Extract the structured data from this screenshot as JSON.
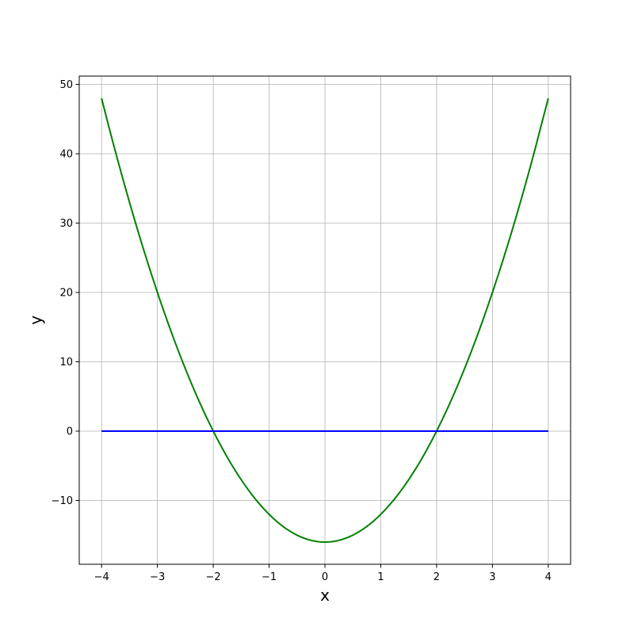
{
  "chart_data": {
    "type": "line",
    "title": "",
    "xlabel": "x",
    "ylabel": "y",
    "xlim": [
      -4.4,
      4.4
    ],
    "ylim": [
      -19.2,
      51.2
    ],
    "grid": true,
    "xticks": [
      -4,
      -3,
      -2,
      -1,
      0,
      1,
      2,
      3,
      4
    ],
    "xtick_labels": [
      "−4",
      "−3",
      "−2",
      "−1",
      "0",
      "1",
      "2",
      "3",
      "4"
    ],
    "yticks": [
      -10,
      0,
      10,
      20,
      30,
      40,
      50
    ],
    "ytick_labels": [
      "−10",
      "0",
      "10",
      "20",
      "30",
      "40",
      "50"
    ],
    "series": [
      {
        "color": "#008000",
        "x": [
          -4,
          -3.75,
          -3.5,
          -3.25,
          -3,
          -2.75,
          -2.5,
          -2.25,
          -2,
          -1.75,
          -1.5,
          -1.25,
          -1,
          -0.75,
          -0.5,
          -0.25,
          0,
          0.25,
          0.5,
          0.75,
          1,
          1.25,
          1.5,
          1.75,
          2,
          2.25,
          2.5,
          2.75,
          3,
          3.25,
          3.5,
          3.75,
          4
        ],
        "y": [
          48,
          40.25,
          33,
          26.25,
          20,
          14.25,
          9,
          4.25,
          0,
          -3.75,
          -7,
          -9.75,
          -12,
          -13.75,
          -15,
          -15.75,
          -16,
          -15.75,
          -15,
          -13.75,
          -12,
          -9.75,
          -7,
          -3.75,
          0,
          4.25,
          9,
          14.25,
          20,
          26.25,
          33,
          40.25,
          48
        ]
      },
      {
        "color": "#0000ff",
        "x": [
          -4,
          4
        ],
        "y": [
          0,
          0
        ]
      }
    ]
  }
}
